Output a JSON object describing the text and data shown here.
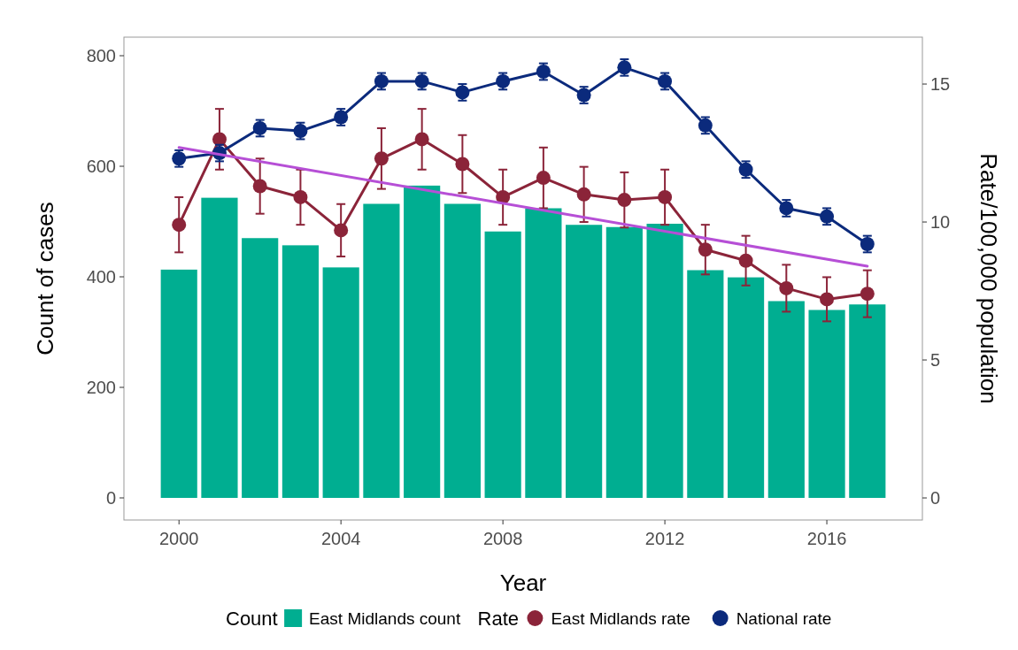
{
  "chart_data": {
    "type": "bar",
    "xlabel": "Year",
    "ylabel": "Count of cases",
    "y2label": "Rate/100,000 population",
    "legend_title": [
      "Count",
      "Rate"
    ],
    "legend": "bottom",
    "grid": false,
    "x": [
      2000,
      2001,
      2002,
      2003,
      2004,
      2005,
      2006,
      2007,
      2008,
      2009,
      2010,
      2011,
      2012,
      2013,
      2014,
      2015,
      2016,
      2017
    ],
    "xlim": [
      1998.64,
      2018.36
    ],
    "xticks": [
      2000,
      2004,
      2008,
      2012,
      2016
    ],
    "ylim": [
      -40,
      833.6
    ],
    "yticks": [
      0,
      200,
      400,
      600,
      800
    ],
    "y2lim": [
      -0.8,
      16.7
    ],
    "y2ticks": [
      0,
      5,
      10,
      15
    ],
    "series": [
      {
        "name": "East Midlands count",
        "color": "#00ae91",
        "values": [
          413,
          543,
          470,
          457,
          417,
          532,
          565,
          532,
          482,
          524,
          494,
          490,
          496,
          412,
          399,
          356,
          340,
          350
        ]
      },
      {
        "name": "East Midlands rate",
        "type": "line",
        "axis": "y2",
        "color": "#8b2439",
        "marker": "circle",
        "line_style": "solid",
        "values": [
          9.9,
          13.0,
          11.3,
          10.9,
          9.7,
          12.3,
          13.0,
          12.1,
          10.9,
          11.6,
          11.0,
          10.8,
          10.9,
          9.0,
          8.6,
          7.6,
          7.2,
          7.4
        ],
        "errors": [
          1.0,
          1.1,
          1.0,
          1.0,
          0.95,
          1.1,
          1.1,
          1.05,
          1.0,
          1.1,
          1.0,
          1.0,
          1.0,
          0.9,
          0.9,
          0.85,
          0.8,
          0.85
        ]
      },
      {
        "name": "National rate",
        "type": "line",
        "axis": "y2",
        "color": "#0b2a7c",
        "marker": "circle",
        "line_style": "solid",
        "values": [
          12.3,
          12.5,
          13.4,
          13.3,
          13.8,
          15.1,
          15.1,
          14.7,
          15.1,
          15.45,
          14.6,
          15.6,
          15.1,
          13.5,
          11.9,
          10.5,
          10.2,
          9.2
        ],
        "errors": [
          0.3,
          0.3,
          0.3,
          0.3,
          0.3,
          0.3,
          0.3,
          0.3,
          0.3,
          0.3,
          0.3,
          0.3,
          0.3,
          0.3,
          0.3,
          0.3,
          0.3,
          0.3
        ]
      },
      {
        "type": "line",
        "axis": "y2",
        "color": "#b64fd6",
        "marker": "none",
        "line_style": "solid",
        "x": [
          2000,
          2017
        ],
        "values": [
          12.7,
          8.4
        ]
      }
    ]
  }
}
